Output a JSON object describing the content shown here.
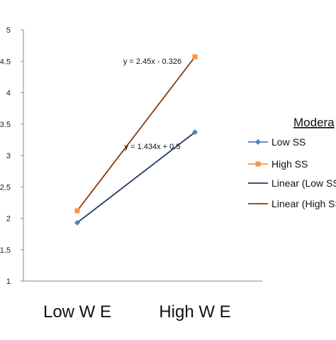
{
  "chart_data": {
    "type": "line",
    "categories": [
      "Low W E",
      "High W E"
    ],
    "ylim": [
      1,
      5
    ],
    "yticks": [
      "1",
      "1.5",
      "2",
      "2.5",
      "3",
      "3.5",
      "4",
      "4.5",
      "5"
    ],
    "series": [
      {
        "name": "Low SS",
        "values": [
          1.93,
          3.37
        ],
        "color": "#4f81bd",
        "marker": "diamond"
      },
      {
        "name": "High SS",
        "values": [
          2.12,
          4.57
        ],
        "color": "#f79646",
        "marker": "square"
      }
    ],
    "trendlines": [
      {
        "name": "Linear (Low SS)",
        "label": "Linear (Low SS",
        "equation": "y = 1.434x + 0.5",
        "color": "#1f3864"
      },
      {
        "name": "Linear (High SS)",
        "label": "Linear (High SS",
        "equation": "y = 2.45x - 0.326",
        "color": "#843c0c"
      }
    ],
    "legend": {
      "title": "Modera",
      "position": "right"
    },
    "grid": false,
    "line_color": "#1f3864"
  }
}
